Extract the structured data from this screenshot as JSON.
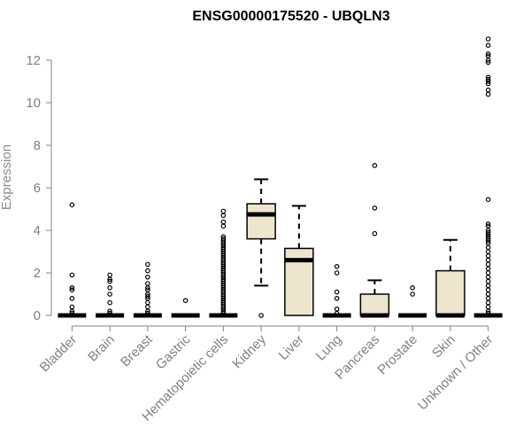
{
  "chart_data": {
    "type": "boxplot",
    "title": "ENSG00000175520 - UBQLN3",
    "xlabel": "",
    "ylabel": "Expression",
    "ylim": [
      0,
      13
    ],
    "yticks": [
      0,
      2,
      4,
      6,
      8,
      10,
      12
    ],
    "box_fill": "#ede6cc",
    "categories": [
      "Bladder",
      "Brain",
      "Breast",
      "Gastric",
      "Hematopoietic cells",
      "Kidney",
      "Liver",
      "Lung",
      "Pancreas",
      "Prostate",
      "Skin",
      "Unknown / Other"
    ],
    "boxes": [
      {
        "category": "Bladder",
        "q1": 0,
        "median": 0,
        "q3": 0,
        "whisker_low": 0,
        "whisker_high": 0,
        "outliers": [
          5.2,
          1.9,
          1.3,
          1.2,
          0.8,
          0.4,
          0.2,
          0.1
        ]
      },
      {
        "category": "Brain",
        "q1": 0,
        "median": 0,
        "q3": 0,
        "whisker_low": 0,
        "whisker_high": 0,
        "outliers": [
          1.9,
          1.7,
          1.6,
          1.3,
          1.0,
          0.6,
          0.2,
          0.1
        ]
      },
      {
        "category": "Breast",
        "q1": 0,
        "median": 0,
        "q3": 0,
        "whisker_low": 0,
        "whisker_high": 0,
        "outliers": [
          2.4,
          2.1,
          1.8,
          1.5,
          1.3,
          1.2,
          1.0,
          0.9,
          0.8,
          0.6,
          0.4,
          0.2,
          0.1
        ]
      },
      {
        "category": "Gastric",
        "q1": 0,
        "median": 0,
        "q3": 0,
        "whisker_low": 0,
        "whisker_high": 0,
        "outliers": [
          0.7
        ]
      },
      {
        "category": "Hematopoietic cells",
        "q1": 0,
        "median": 0,
        "q3": 0,
        "whisker_low": 0,
        "whisker_high": 0,
        "outliers": [
          4.9,
          4.7,
          4.4,
          4.2,
          3.7,
          3.6,
          3.5,
          3.4,
          3.3,
          3.2,
          3.1,
          3.0,
          2.9,
          2.8,
          2.7,
          2.6,
          2.5,
          2.4,
          2.3,
          2.2,
          2.1,
          2.0,
          1.9,
          1.8,
          1.7,
          1.6,
          1.5,
          1.4,
          1.3,
          1.2,
          1.1,
          1.0,
          0.9,
          0.8,
          0.7,
          0.6,
          0.5,
          0.4,
          0.3,
          0.2,
          0.1
        ]
      },
      {
        "category": "Kidney",
        "q1": 3.6,
        "median": 4.75,
        "q3": 5.25,
        "whisker_low": 1.4,
        "whisker_high": 6.4,
        "outliers": [
          0
        ]
      },
      {
        "category": "Liver",
        "q1": 0,
        "median": 2.6,
        "q3": 3.15,
        "whisker_low": 0,
        "whisker_high": 5.15,
        "outliers": []
      },
      {
        "category": "Lung",
        "q1": 0,
        "median": 0,
        "q3": 0,
        "whisker_low": 0,
        "whisker_high": 0,
        "outliers": [
          2.3,
          2.0,
          1.1,
          0.8,
          0.3,
          0.1
        ]
      },
      {
        "category": "Pancreas",
        "q1": 0,
        "median": 0,
        "q3": 1.0,
        "whisker_low": 0,
        "whisker_high": 1.65,
        "outliers": [
          7.05,
          5.05,
          3.85
        ]
      },
      {
        "category": "Prostate",
        "q1": 0,
        "median": 0,
        "q3": 0,
        "whisker_low": 0,
        "whisker_high": 0,
        "outliers": [
          1.3,
          1.0
        ]
      },
      {
        "category": "Skin",
        "q1": 0,
        "median": 0,
        "q3": 2.1,
        "whisker_low": 0,
        "whisker_high": 3.55,
        "outliers": []
      },
      {
        "category": "Unknown / Other",
        "q1": 0,
        "median": 0,
        "q3": 0,
        "whisker_low": 0,
        "whisker_high": 0,
        "outliers": [
          13.0,
          12.7,
          12.3,
          12.2,
          12.0,
          11.9,
          11.2,
          11.1,
          11.0,
          10.9,
          10.6,
          10.4,
          5.45,
          4.3,
          4.2,
          4.0,
          3.9,
          3.8,
          3.7,
          3.6,
          3.5,
          3.4,
          3.2,
          3.0,
          2.8,
          2.6,
          2.4,
          2.2,
          2.0,
          1.8,
          1.6,
          1.4,
          1.2,
          1.0,
          0.8,
          0.6,
          0.4,
          0.2,
          0.1
        ]
      }
    ]
  }
}
